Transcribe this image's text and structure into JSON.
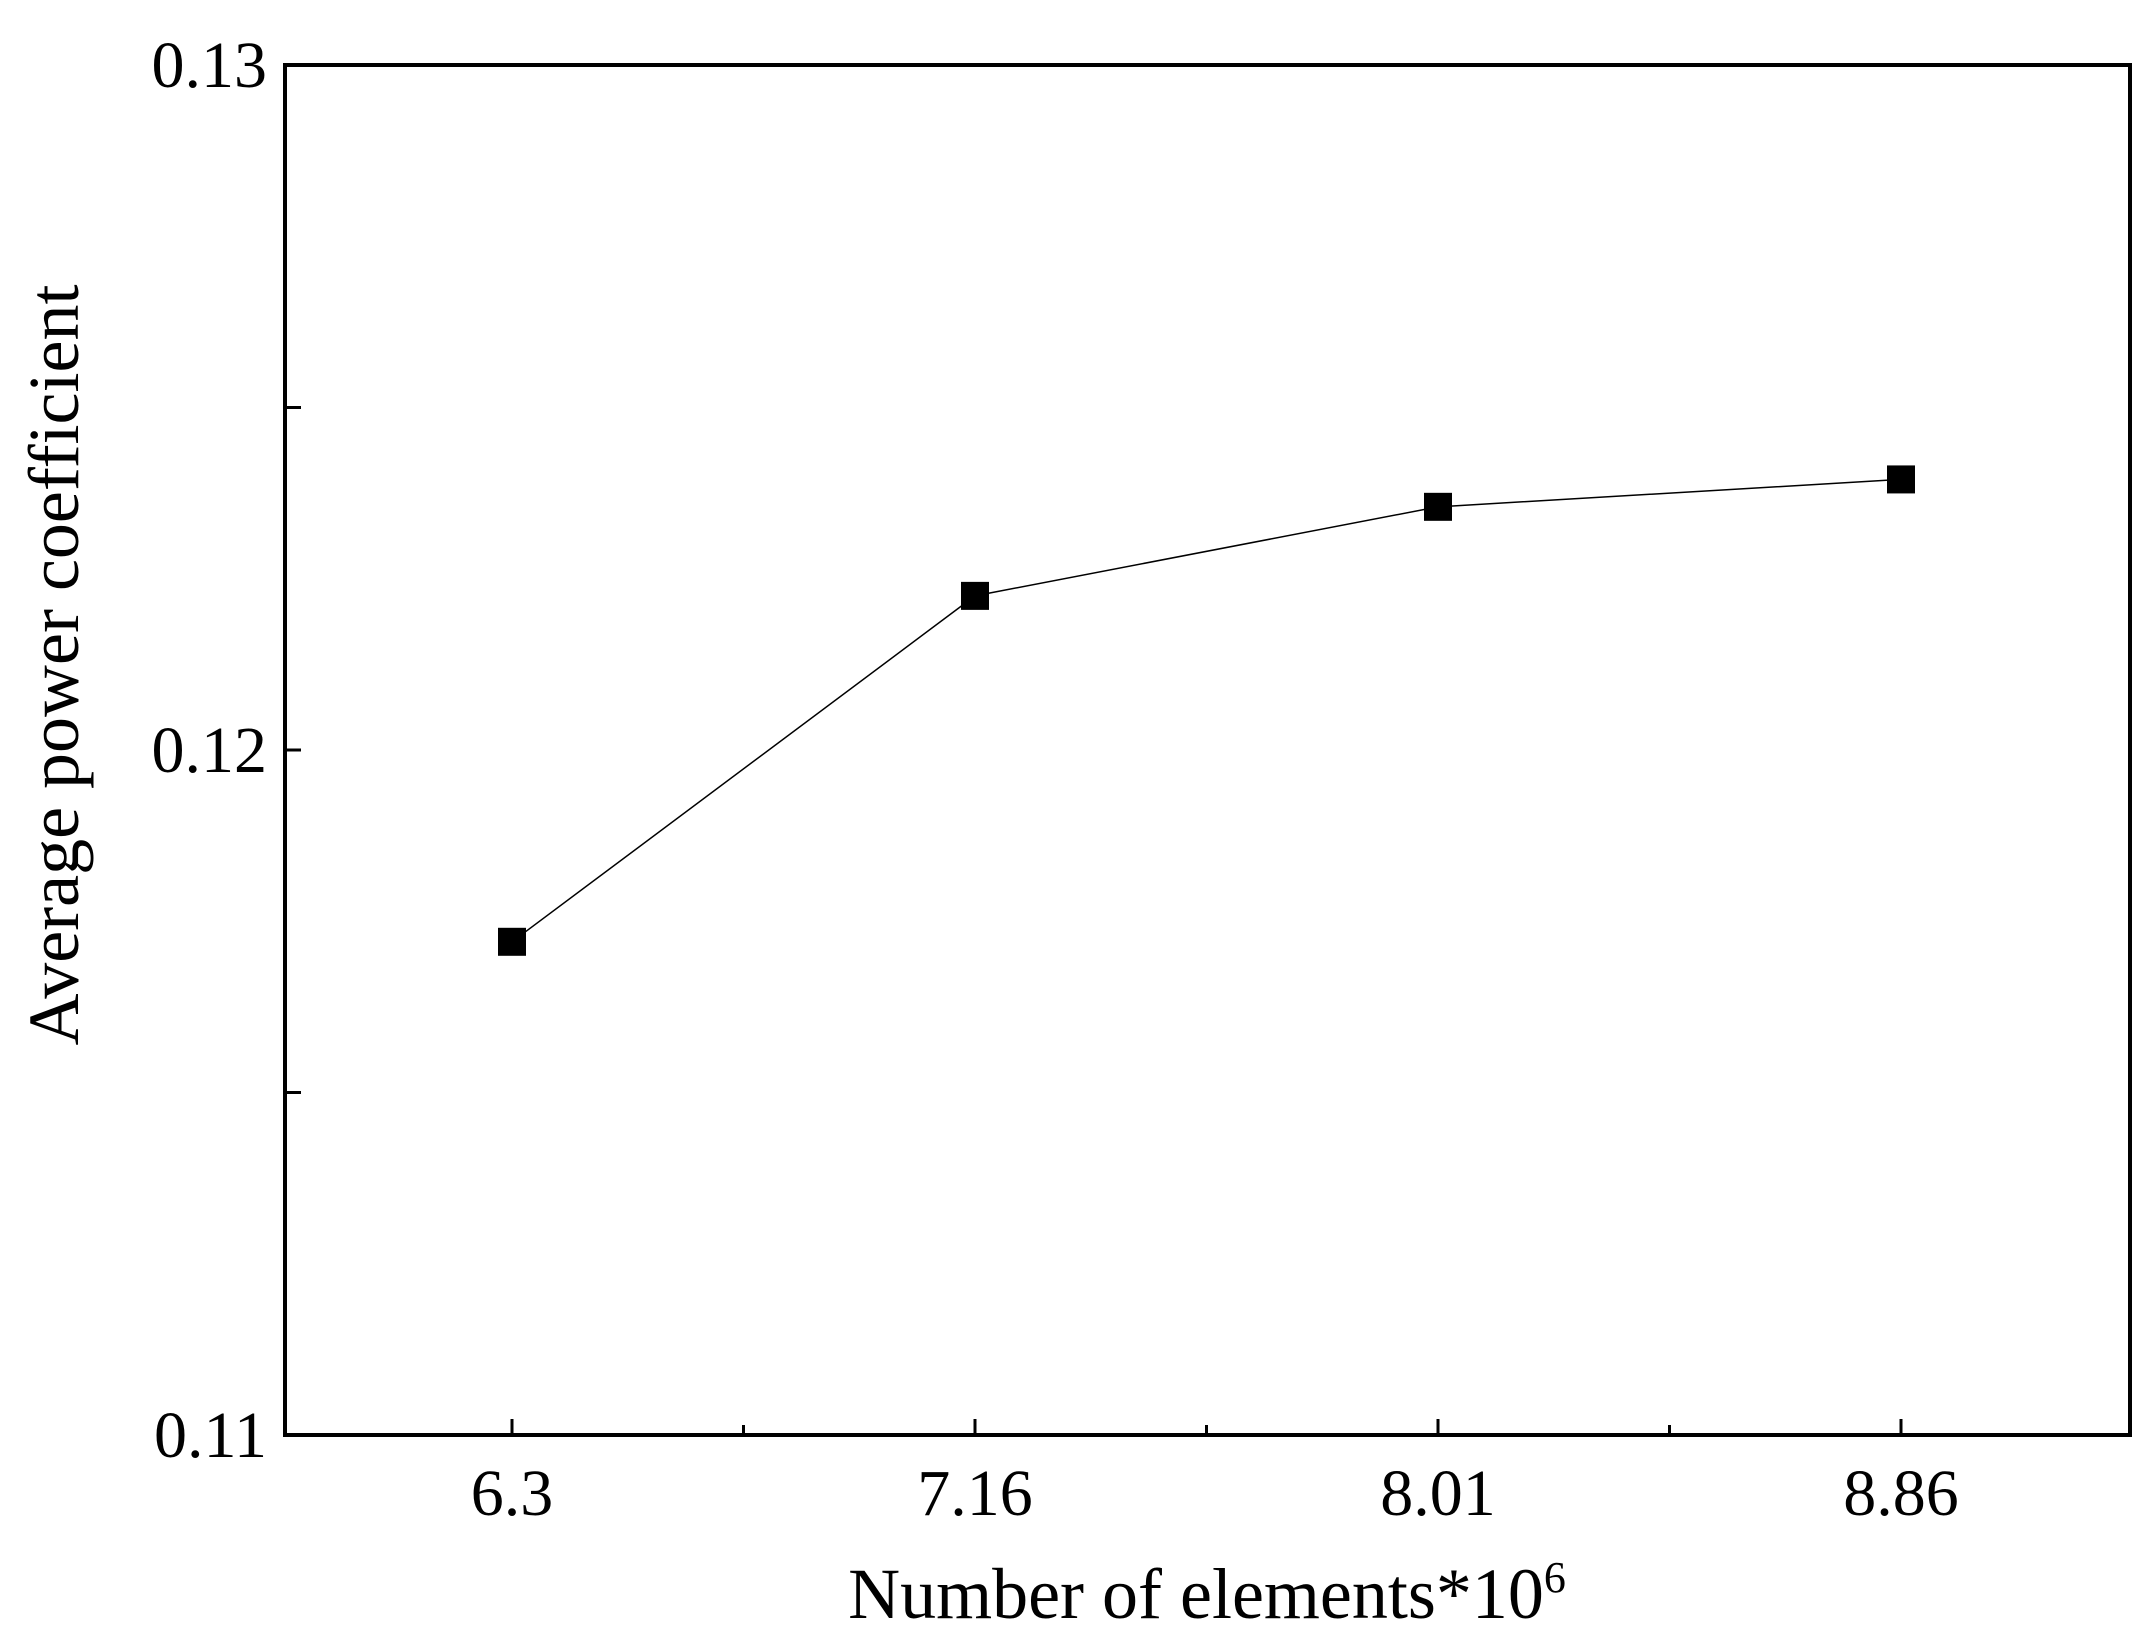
{
  "chart_data": {
    "type": "line",
    "title": "",
    "xlabel": "Number of elements*10",
    "xlabel_superscript": "6",
    "ylabel": "Average power coefficient",
    "categories": [
      "6.3",
      "7.16",
      "8.01",
      "8.86"
    ],
    "series": [
      {
        "values": [
          0.1172,
          0.12225,
          0.12355,
          0.12395
        ],
        "marker": "square",
        "color": "#000000"
      }
    ],
    "ylim": [
      0.11,
      0.13
    ],
    "yticks": [
      0.11,
      0.115,
      0.12,
      0.125,
      0.13
    ],
    "ytick_labels": [
      "0.11",
      "",
      "0.12",
      "",
      "0.13"
    ],
    "grid": false,
    "legend": "none"
  }
}
